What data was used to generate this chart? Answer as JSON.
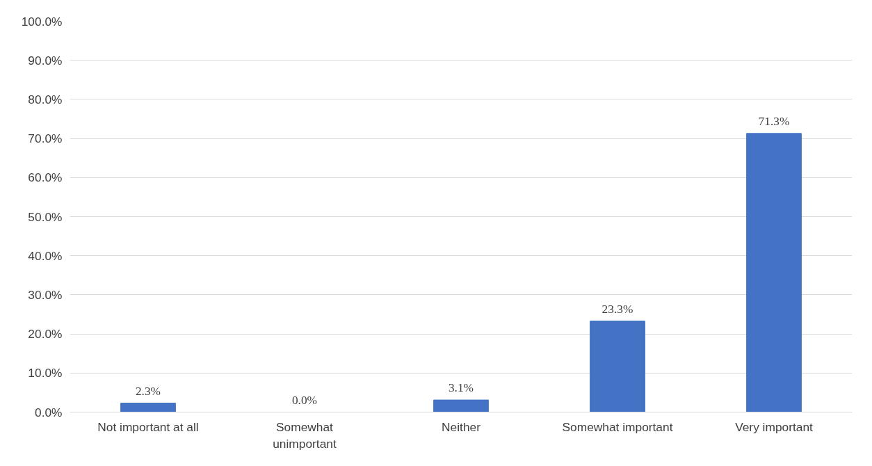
{
  "chart_data": {
    "type": "bar",
    "categories": [
      "Not important at all",
      "Somewhat\nunimportant",
      "Neither",
      "Somewhat important",
      "Very important"
    ],
    "values": [
      2.3,
      0.0,
      3.1,
      23.3,
      71.3
    ],
    "value_labels": [
      "2.3%",
      "0.0%",
      "3.1%",
      "23.3%",
      "71.3%"
    ],
    "color": "#4472c4",
    "ylim": [
      0,
      100
    ],
    "yticks": [
      {
        "value": 0,
        "label": "0.0%"
      },
      {
        "value": 10,
        "label": "10.0%"
      },
      {
        "value": 20,
        "label": "20.0%"
      },
      {
        "value": 30,
        "label": "30.0%"
      },
      {
        "value": 40,
        "label": "40.0%"
      },
      {
        "value": 50,
        "label": "50.0%"
      },
      {
        "value": 60,
        "label": "60.0%"
      },
      {
        "value": 70,
        "label": "70.0%"
      },
      {
        "value": 80,
        "label": "80.0%"
      },
      {
        "value": 90,
        "label": "90.0%"
      },
      {
        "value": 100,
        "label": "100.0%"
      }
    ],
    "grid": "y"
  }
}
